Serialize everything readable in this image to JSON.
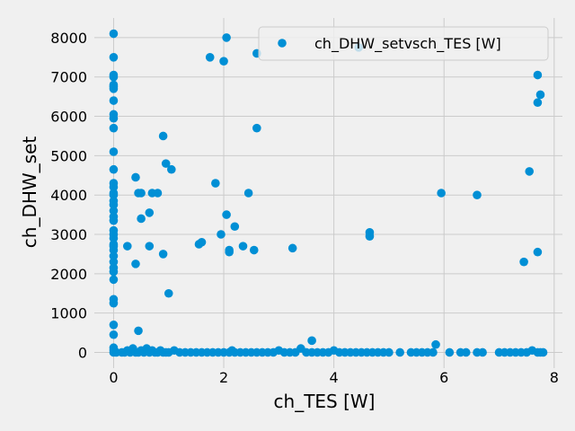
{
  "chart_data": {
    "type": "scatter",
    "xlabel": "ch_TES [W]",
    "ylabel": "ch_DHW_set",
    "xlim": [
      -0.35,
      8.15
    ],
    "ylim": [
      -400,
      8500
    ],
    "xticks": [
      "0",
      "2",
      "4",
      "6",
      "8"
    ],
    "yticks": [
      "0",
      "1000",
      "2000",
      "3000",
      "4000",
      "5000",
      "6000",
      "7000",
      "8000"
    ],
    "grid": true,
    "legend_position": "top-right",
    "colors": {
      "marker": "#008fd5",
      "background": "#f0f0f0",
      "grid": "#cbcbcb"
    },
    "series": [
      {
        "name": "ch_DHW_setvsch_TES [W]",
        "points": [
          [
            0,
            8100
          ],
          [
            0,
            7500
          ],
          [
            0,
            7050
          ],
          [
            0,
            7000
          ],
          [
            0,
            6800
          ],
          [
            0,
            6750
          ],
          [
            0,
            6700
          ],
          [
            0,
            6400
          ],
          [
            0,
            6050
          ],
          [
            0,
            5950
          ],
          [
            0,
            5700
          ],
          [
            0,
            5100
          ],
          [
            0,
            4650
          ],
          [
            0,
            4300
          ],
          [
            0,
            4200
          ],
          [
            0,
            4050
          ],
          [
            0,
            4000
          ],
          [
            0,
            3850
          ],
          [
            0,
            3750
          ],
          [
            0,
            3600
          ],
          [
            0,
            3450
          ],
          [
            0,
            3350
          ],
          [
            0,
            3100
          ],
          [
            0,
            3000
          ],
          [
            0,
            2900
          ],
          [
            0,
            2750
          ],
          [
            0,
            2700
          ],
          [
            0,
            2600
          ],
          [
            0,
            2450
          ],
          [
            0,
            2300
          ],
          [
            0,
            2150
          ],
          [
            0,
            2050
          ],
          [
            0,
            1850
          ],
          [
            0,
            1350
          ],
          [
            0,
            1250
          ],
          [
            0,
            700
          ],
          [
            0,
            450
          ],
          [
            0,
            120
          ],
          [
            0,
            60
          ],
          [
            0,
            0
          ],
          [
            0.05,
            0
          ],
          [
            0.15,
            0
          ],
          [
            0.2,
            0
          ],
          [
            0.25,
            50
          ],
          [
            0.3,
            0
          ],
          [
            0.35,
            100
          ],
          [
            0.4,
            0
          ],
          [
            0.45,
            0
          ],
          [
            0.5,
            50
          ],
          [
            0.55,
            0
          ],
          [
            0.6,
            100
          ],
          [
            0.65,
            0
          ],
          [
            0.7,
            50
          ],
          [
            0.75,
            0
          ],
          [
            0.8,
            0
          ],
          [
            0.85,
            50
          ],
          [
            0.9,
            0
          ],
          [
            0.95,
            0
          ],
          [
            1.0,
            0
          ],
          [
            1.1,
            50
          ],
          [
            1.2,
            0
          ],
          [
            1.3,
            0
          ],
          [
            1.4,
            0
          ],
          [
            1.5,
            0
          ],
          [
            1.6,
            0
          ],
          [
            1.7,
            0
          ],
          [
            1.8,
            0
          ],
          [
            1.9,
            0
          ],
          [
            2.0,
            0
          ],
          [
            2.1,
            0
          ],
          [
            2.15,
            50
          ],
          [
            2.2,
            0
          ],
          [
            2.3,
            0
          ],
          [
            2.4,
            0
          ],
          [
            2.5,
            0
          ],
          [
            2.6,
            0
          ],
          [
            2.7,
            0
          ],
          [
            2.8,
            0
          ],
          [
            2.9,
            0
          ],
          [
            3.0,
            50
          ],
          [
            3.1,
            0
          ],
          [
            3.2,
            0
          ],
          [
            3.3,
            0
          ],
          [
            3.4,
            100
          ],
          [
            3.5,
            0
          ],
          [
            3.6,
            0
          ],
          [
            3.7,
            0
          ],
          [
            3.8,
            0
          ],
          [
            3.9,
            0
          ],
          [
            4.0,
            50
          ],
          [
            4.1,
            0
          ],
          [
            4.2,
            0
          ],
          [
            4.3,
            0
          ],
          [
            4.4,
            0
          ],
          [
            4.5,
            0
          ],
          [
            4.6,
            0
          ],
          [
            4.7,
            0
          ],
          [
            4.8,
            0
          ],
          [
            4.9,
            0
          ],
          [
            5.0,
            0
          ],
          [
            5.2,
            0
          ],
          [
            5.4,
            0
          ],
          [
            5.5,
            0
          ],
          [
            5.6,
            0
          ],
          [
            5.7,
            0
          ],
          [
            5.8,
            0
          ],
          [
            6.1,
            0
          ],
          [
            6.3,
            0
          ],
          [
            6.4,
            0
          ],
          [
            6.6,
            0
          ],
          [
            6.7,
            0
          ],
          [
            7.0,
            0
          ],
          [
            7.1,
            0
          ],
          [
            7.2,
            0
          ],
          [
            7.3,
            0
          ],
          [
            7.4,
            0
          ],
          [
            7.5,
            0
          ],
          [
            7.6,
            50
          ],
          [
            7.7,
            0
          ],
          [
            7.75,
            0
          ],
          [
            7.8,
            0
          ],
          [
            0.25,
            2700
          ],
          [
            0.4,
            4450
          ],
          [
            0.4,
            2250
          ],
          [
            0.45,
            4050
          ],
          [
            0.5,
            4050
          ],
          [
            0.5,
            3400
          ],
          [
            0.45,
            550
          ],
          [
            0.65,
            3550
          ],
          [
            0.65,
            2700
          ],
          [
            0.7,
            4050
          ],
          [
            0.8,
            4050
          ],
          [
            0.9,
            5500
          ],
          [
            0.9,
            2500
          ],
          [
            0.95,
            4800
          ],
          [
            1.0,
            1500
          ],
          [
            1.05,
            4650
          ],
          [
            1.55,
            2750
          ],
          [
            1.6,
            2800
          ],
          [
            1.75,
            7500
          ],
          [
            1.85,
            4300
          ],
          [
            1.95,
            3000
          ],
          [
            2.0,
            7400
          ],
          [
            2.05,
            8000
          ],
          [
            2.05,
            3500
          ],
          [
            2.1,
            2550
          ],
          [
            2.1,
            2600
          ],
          [
            2.2,
            3200
          ],
          [
            2.35,
            2700
          ],
          [
            2.45,
            4050
          ],
          [
            2.55,
            2600
          ],
          [
            2.6,
            7600
          ],
          [
            2.6,
            5700
          ],
          [
            3.25,
            2650
          ],
          [
            3.6,
            300
          ],
          [
            4.45,
            7750
          ],
          [
            4.65,
            3050
          ],
          [
            4.65,
            2950
          ],
          [
            5.85,
            200
          ],
          [
            5.95,
            4050
          ],
          [
            6.6,
            4000
          ],
          [
            7.45,
            2300
          ],
          [
            7.55,
            4600
          ],
          [
            7.7,
            7050
          ],
          [
            7.7,
            6350
          ],
          [
            7.7,
            2550
          ],
          [
            7.75,
            6550
          ]
        ]
      }
    ]
  }
}
